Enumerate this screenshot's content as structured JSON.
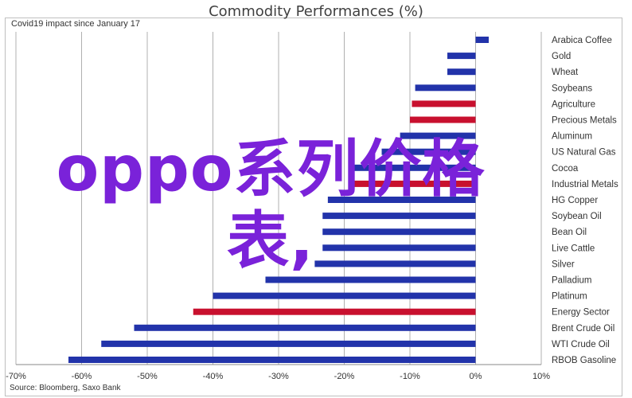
{
  "chart_data": {
    "type": "bar",
    "orientation": "horizontal",
    "title": "Commodity Performances (%)",
    "subtitle": "Covid19 impact since January 17",
    "source": "Source: Bloomberg, Saxo Bank",
    "categories": [
      "Arabica Coffee",
      "Gold",
      "Wheat",
      "Soybeans",
      "Agriculture",
      "Precious Metals",
      "Aluminum",
      "US Natural Gas",
      "Cocoa",
      "Industrial Metals",
      "HG Copper",
      "Soybean Oil",
      "Bean Oil",
      "Live Cattle",
      "Silver",
      "Palladium",
      "Platinum",
      "Energy Sector",
      "Brent Crude Oil",
      "WTI Crude Oil",
      "RBOB Gasoline"
    ],
    "values": [
      2,
      -4.3,
      -4.3,
      -9.2,
      -9.7,
      -10,
      -11.5,
      -14.3,
      -18.6,
      -19.2,
      -22.5,
      -23.3,
      -23.3,
      -23.3,
      -24.5,
      -32,
      -40,
      -43,
      -52,
      -57,
      -62
    ],
    "highlight": [
      false,
      false,
      false,
      false,
      true,
      true,
      false,
      false,
      false,
      true,
      false,
      false,
      false,
      false,
      false,
      false,
      false,
      true,
      false,
      false,
      false
    ],
    "colors": {
      "bar": "#2233aa",
      "highlight": "#c8102e",
      "grid": "#b0b0b0"
    },
    "xlim": [
      -70,
      10
    ],
    "xticks": [
      -70,
      -60,
      -50,
      -40,
      -30,
      -20,
      -10,
      0,
      10
    ],
    "xtick_labels": [
      "-70%",
      "-60%",
      "-50%",
      "-40%",
      "-30%",
      "-20%",
      "-10%",
      "0%",
      "10%"
    ],
    "grid": true
  },
  "overlay_text": "oppo系列价格表,"
}
